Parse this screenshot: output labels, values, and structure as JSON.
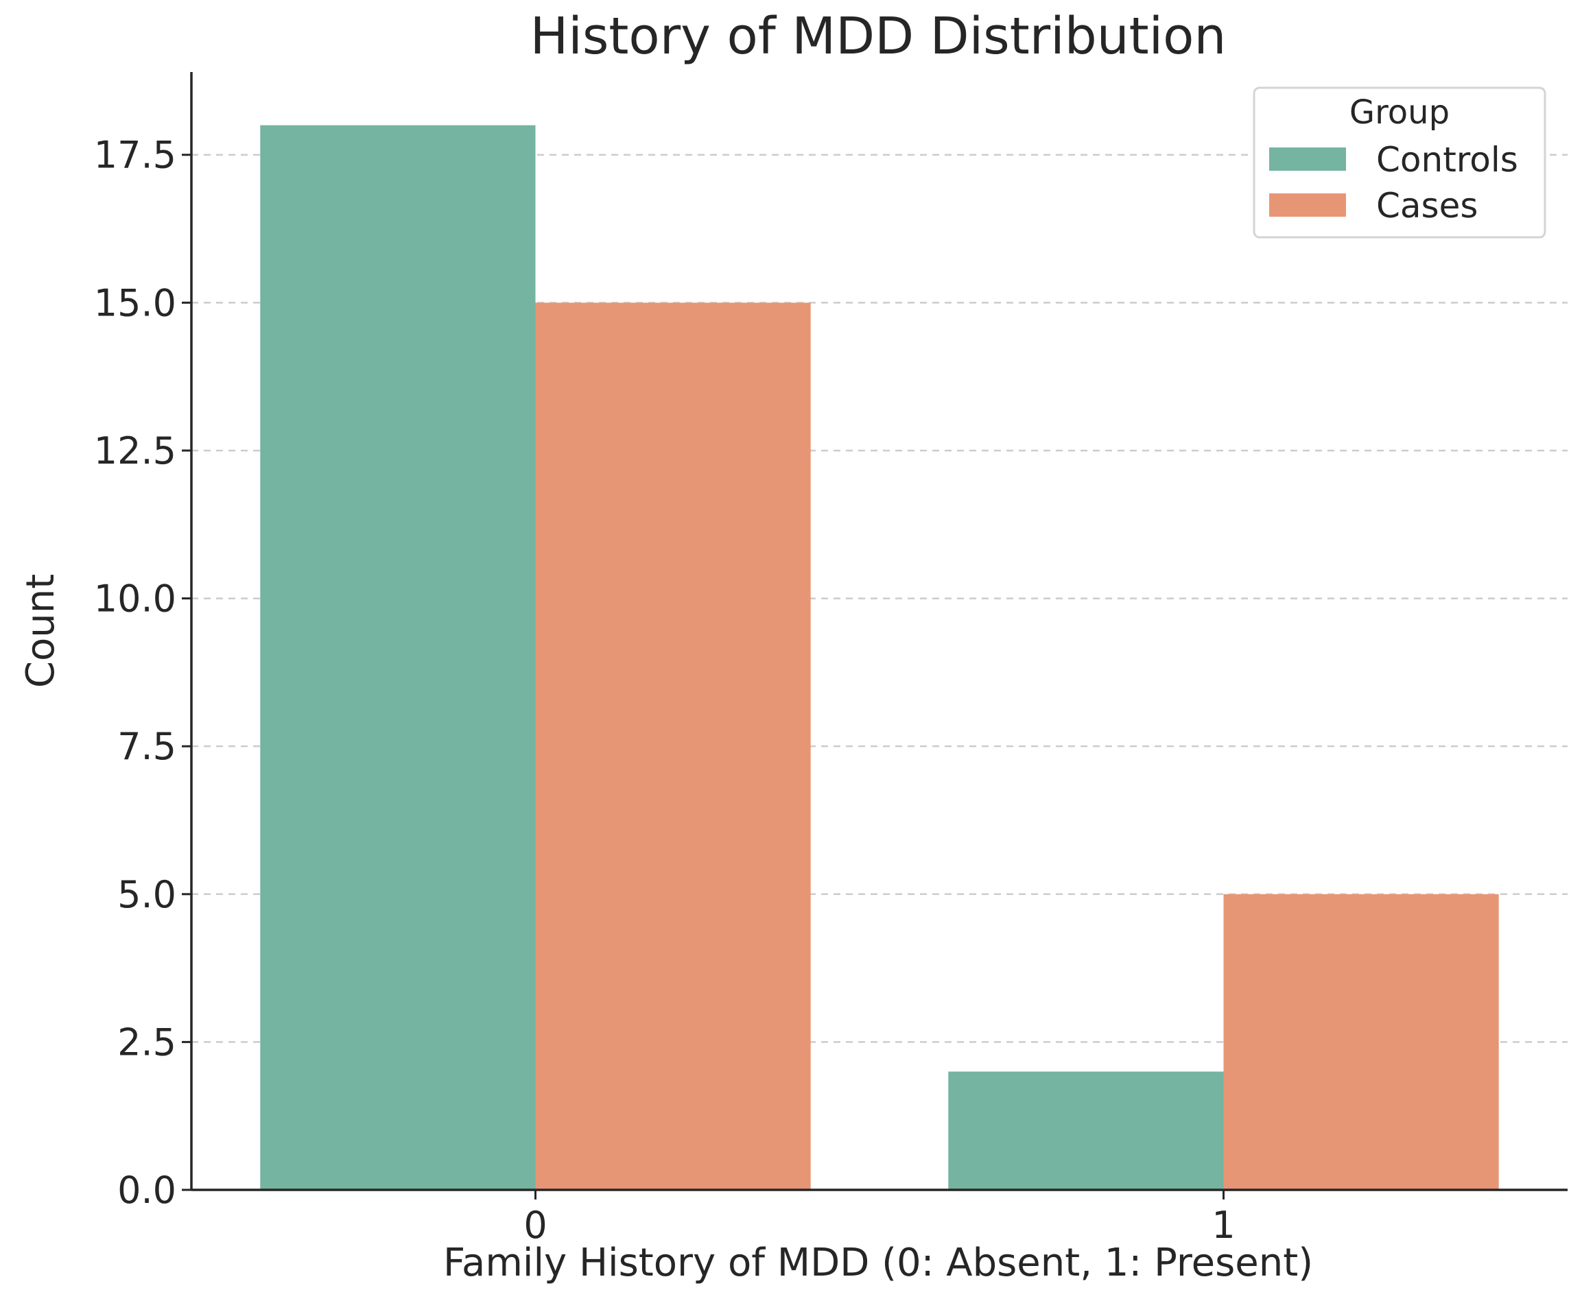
{
  "chart_data": {
    "type": "bar",
    "title": "History of MDD Distribution",
    "xlabel": "Family History of MDD (0: Absent, 1: Present)",
    "ylabel": "Count",
    "categories": [
      "0",
      "1"
    ],
    "series": [
      {
        "name": "Controls",
        "color": "#74b4a0",
        "values": [
          18,
          2
        ]
      },
      {
        "name": "Cases",
        "color": "#e79675",
        "values": [
          15,
          5
        ]
      }
    ],
    "ylim": [
      0,
      18.9
    ],
    "yticks": [
      "0.0",
      "2.5",
      "5.0",
      "7.5",
      "10.0",
      "12.5",
      "15.0",
      "17.5"
    ],
    "grid": true,
    "legend": {
      "title": "Group",
      "position": "top-right"
    }
  }
}
